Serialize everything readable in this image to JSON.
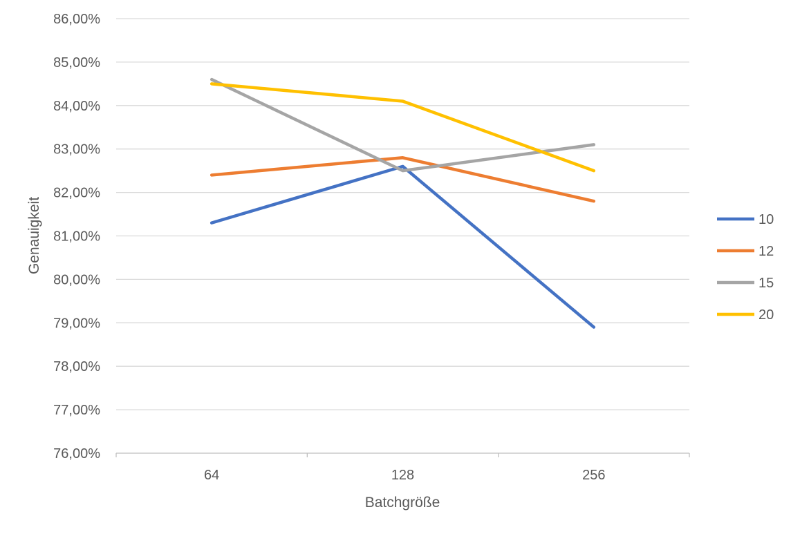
{
  "chart_data": {
    "type": "line",
    "title": "",
    "xlabel": "Batchgröße",
    "ylabel": "Genauigkeit",
    "categories": [
      "64",
      "128",
      "256"
    ],
    "y_ticks": [
      "76,00%",
      "77,00%",
      "78,00%",
      "79,00%",
      "80,00%",
      "81,00%",
      "82,00%",
      "83,00%",
      "84,00%",
      "85,00%",
      "86,00%"
    ],
    "ylim": [
      76,
      86
    ],
    "y_unit": "%",
    "grid": true,
    "legend_position": "right",
    "series": [
      {
        "name": "10",
        "color": "#4472C4",
        "values": [
          81.3,
          82.6,
          78.9
        ]
      },
      {
        "name": "12",
        "color": "#ED7D31",
        "values": [
          82.4,
          82.8,
          81.8
        ]
      },
      {
        "name": "15",
        "color": "#A5A5A5",
        "values": [
          84.6,
          82.5,
          83.1
        ]
      },
      {
        "name": "20",
        "color": "#FFC000",
        "values": [
          84.5,
          84.1,
          82.5
        ]
      }
    ]
  }
}
